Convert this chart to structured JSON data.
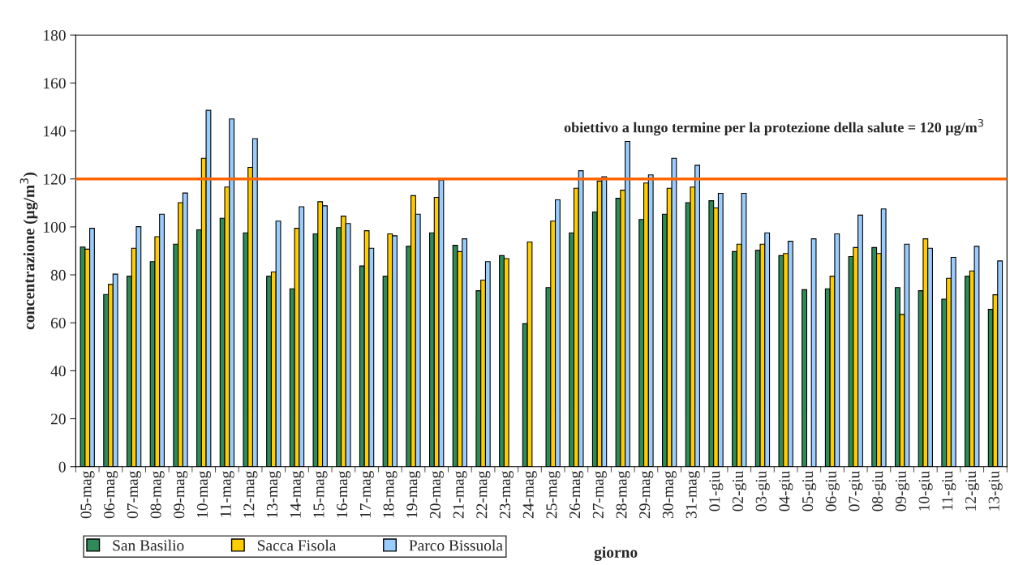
{
  "chart_data": {
    "type": "bar",
    "xlabel": "giorno",
    "ylabel": "concentrazione (µg/m$^{3}$)",
    "categories": [
      "05-mag",
      "06-mag",
      "07-mag",
      "08-mag",
      "09-mag",
      "10-mag",
      "11-mag",
      "12-mag",
      "13-mag",
      "14-mag",
      "15-mag",
      "16-mag",
      "17-mag",
      "18-mag",
      "19-mag",
      "20-mag",
      "21-mag",
      "22-mag",
      "23-mag",
      "24-mag",
      "25-mag",
      "26-mag",
      "27-mag",
      "28-mag",
      "29-mag",
      "30-mag",
      "31-mag",
      "01-giu",
      "02-giu",
      "03-giu",
      "04-giu",
      "05-giu",
      "06-giu",
      "07-giu",
      "08-giu",
      "09-giu",
      "10-giu",
      "11-giu",
      "12-giu",
      "13-giu"
    ],
    "series": [
      {
        "name": "San Basilio",
        "color": "#2e8b57",
        "values": [
          91.6,
          71.8,
          79.4,
          85.5,
          92.8,
          98.8,
          103.6,
          97.5,
          79.4,
          74.2,
          97.1,
          99.7,
          83.7,
          79.4,
          91.9,
          97.5,
          92.3,
          73.4,
          88.0,
          59.6,
          74.7,
          97.5,
          106.2,
          111.9,
          103.1,
          105.3,
          110.1,
          110.9,
          89.7,
          90.2,
          88.0,
          73.8,
          74.2,
          87.6,
          91.4,
          74.7,
          73.4,
          69.9,
          79.4,
          65.6
        ]
      },
      {
        "name": "Sacca Fisola",
        "color": "#ffcc00",
        "values": [
          90.7,
          76.0,
          91.1,
          95.9,
          110.1,
          128.6,
          116.6,
          124.8,
          81.2,
          99.4,
          110.5,
          104.5,
          98.4,
          97.1,
          113.0,
          112.3,
          89.7,
          77.8,
          86.8,
          93.7,
          102.4,
          116.1,
          119.1,
          115.3,
          118.3,
          116.1,
          116.6,
          107.9,
          92.8,
          92.8,
          88.9,
          null,
          79.4,
          91.4,
          88.9,
          63.5,
          95.0,
          78.6,
          81.6,
          71.7
        ]
      },
      {
        "name": "Parco Bissuola",
        "color": "#99ccff",
        "values": [
          99.4,
          80.3,
          100.1,
          105.3,
          114.1,
          148.6,
          145.0,
          136.8,
          102.4,
          108.4,
          108.8,
          101.4,
          91.1,
          96.3,
          105.3,
          119.5,
          95.0,
          85.5,
          null,
          null,
          111.3,
          123.4,
          120.9,
          135.6,
          121.7,
          128.6,
          125.7,
          114.0,
          114.0,
          97.5,
          94.0,
          95.0,
          97.1,
          104.9,
          107.5,
          92.8,
          91.1,
          87.3,
          91.9,
          85.8
        ]
      }
    ],
    "ylim": [
      0,
      180
    ],
    "yticks": [
      0,
      20,
      40,
      60,
      80,
      100,
      120,
      140,
      160,
      180
    ],
    "ref_lines": [
      {
        "axis": "y",
        "value": 120,
        "label": "obiettivo a lungo termine per la protezione della salute = 120 µg/m$^{3}$",
        "color": "#ff6600"
      }
    ],
    "grid": false,
    "legend": "bottom left"
  }
}
